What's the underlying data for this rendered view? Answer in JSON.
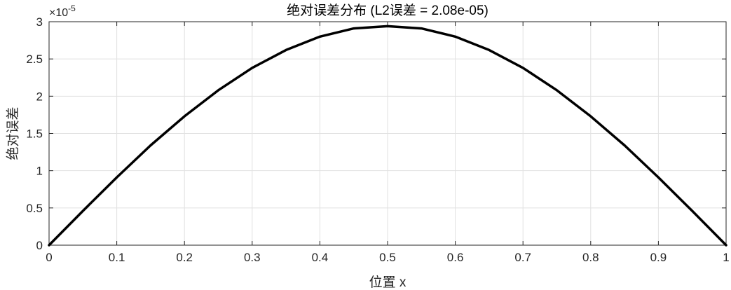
{
  "chart_data": {
    "type": "line",
    "title": "绝对误差分布 (L2误差 = 2.08e-05)",
    "xlabel": "位置 x",
    "ylabel": "绝对误差",
    "y_exponent_label": "×10",
    "y_exponent_power": "-5",
    "xlim": [
      0,
      1
    ],
    "ylim": [
      0,
      3
    ],
    "x_ticks": [
      0,
      0.1,
      0.2,
      0.3,
      0.4,
      0.5,
      0.6,
      0.7,
      0.8,
      0.9,
      1
    ],
    "x_tick_labels": [
      "0",
      "0.1",
      "0.2",
      "0.3",
      "0.4",
      "0.5",
      "0.6",
      "0.7",
      "0.8",
      "0.9",
      "1"
    ],
    "y_ticks": [
      0,
      0.5,
      1,
      1.5,
      2,
      2.5,
      3
    ],
    "y_tick_labels": [
      "0",
      "0.5",
      "1",
      "1.5",
      "2",
      "2.5",
      "3"
    ],
    "grid": true,
    "series": [
      {
        "color": "#000000",
        "x": [
          0,
          0.05,
          0.1,
          0.15,
          0.2,
          0.25,
          0.3,
          0.35,
          0.4,
          0.45,
          0.5,
          0.55,
          0.6,
          0.65,
          0.7,
          0.75,
          0.8,
          0.85,
          0.9,
          0.95,
          1
        ],
        "y": [
          0,
          0.46,
          0.91,
          1.34,
          1.73,
          2.08,
          2.38,
          2.62,
          2.8,
          2.91,
          2.94,
          2.91,
          2.8,
          2.62,
          2.38,
          2.08,
          1.73,
          1.34,
          0.91,
          0.46,
          0
        ]
      }
    ]
  }
}
